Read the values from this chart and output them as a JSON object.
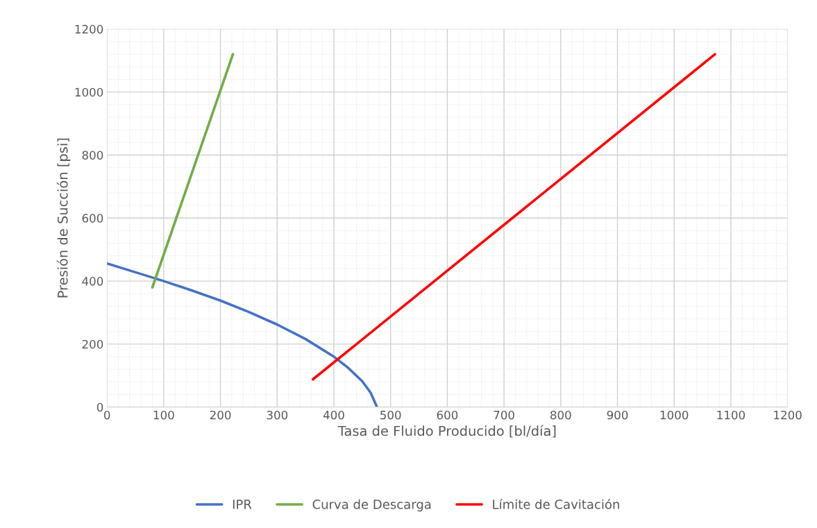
{
  "chart_data": {
    "type": "line",
    "xlabel": "Tasa de Fluido Producido [bl/día]",
    "ylabel": "Presión de Succión [psi]",
    "xlim": [
      0,
      1200
    ],
    "xticks": [
      0,
      100,
      200,
      300,
      400,
      500,
      600,
      700,
      800,
      900,
      1000,
      1100,
      1200
    ],
    "ylim": [
      0,
      1200
    ],
    "yticks": [
      0,
      200,
      400,
      600,
      800,
      1000,
      1200
    ],
    "grid": true,
    "legend": "bottom",
    "marker": "none",
    "line_style": "solid",
    "series": [
      {
        "name": "IPR",
        "color": "#4472c4",
        "x": [
          0,
          50,
          100,
          150,
          200,
          250,
          300,
          350,
          400,
          425,
          450,
          465,
          476
        ],
        "values": [
          456,
          428,
          400,
          370,
          338,
          302,
          262,
          216,
          160,
          125,
          82,
          45,
          0
        ]
      },
      {
        "name": "Curva de Descarga",
        "color": "#70ad47",
        "x": [
          80,
          222
        ],
        "values": [
          380,
          1120
        ]
      },
      {
        "name": "Límite de Cavitación",
        "color": "#ff0000",
        "x": [
          363,
          1072
        ],
        "values": [
          88,
          1120
        ]
      }
    ]
  }
}
